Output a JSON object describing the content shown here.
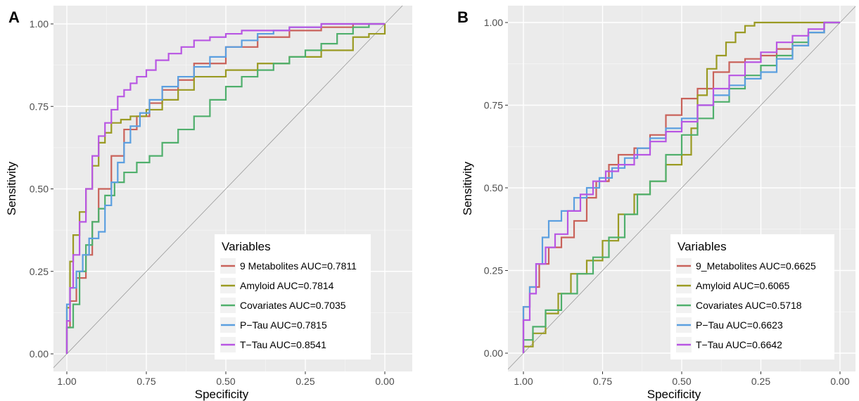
{
  "chart_data": [
    {
      "type": "line",
      "panel_label": "A",
      "xlabel": "Specificity",
      "ylabel": "Sensitivity",
      "xlim": [
        1.0,
        0.0
      ],
      "ylim": [
        0.0,
        1.0
      ],
      "x_reversed": true,
      "x_ticks": [
        "1.00",
        "0.75",
        "0.50",
        "0.25",
        "0.00"
      ],
      "x_tick_values": [
        1.0,
        0.75,
        0.5,
        0.25,
        0.0
      ],
      "y_ticks": [
        "0.00",
        "0.25",
        "0.50",
        "0.75",
        "1.00"
      ],
      "y_tick_values": [
        0.0,
        0.25,
        0.5,
        0.75,
        1.0
      ],
      "grid": true,
      "background": "#ebebeb",
      "diagonal_reference": true,
      "legend": {
        "title": "Variables",
        "position": "bottom-right"
      },
      "series": [
        {
          "name": "9 Metabolites AUC=0.7811",
          "color": "#c9625a",
          "x": [
            1.0,
            0.99,
            0.97,
            0.94,
            0.92,
            0.9,
            0.86,
            0.82,
            0.78,
            0.74,
            0.7,
            0.65,
            0.6,
            0.5,
            0.4,
            0.3,
            0.2,
            0.1,
            0.05,
            0.0
          ],
          "y": [
            0.0,
            0.08,
            0.16,
            0.23,
            0.3,
            0.4,
            0.5,
            0.6,
            0.68,
            0.72,
            0.76,
            0.8,
            0.83,
            0.88,
            0.93,
            0.96,
            0.98,
            0.99,
            1.0,
            1.0
          ]
        },
        {
          "name": "Amyloid AUC=0.7814",
          "color": "#9a9a22",
          "x": [
            1.0,
            0.99,
            0.98,
            0.96,
            0.94,
            0.92,
            0.9,
            0.88,
            0.86,
            0.83,
            0.8,
            0.75,
            0.7,
            0.65,
            0.6,
            0.5,
            0.4,
            0.3,
            0.2,
            0.1,
            0.05,
            0.0,
            0.0
          ],
          "y": [
            0.0,
            0.14,
            0.28,
            0.36,
            0.43,
            0.5,
            0.57,
            0.64,
            0.67,
            0.7,
            0.71,
            0.72,
            0.74,
            0.77,
            0.8,
            0.84,
            0.86,
            0.88,
            0.9,
            0.92,
            0.96,
            0.97,
            1.0
          ]
        },
        {
          "name": "Covariates AUC=0.7035",
          "color": "#4faf6c",
          "x": [
            1.0,
            0.98,
            0.96,
            0.94,
            0.92,
            0.9,
            0.88,
            0.85,
            0.82,
            0.78,
            0.74,
            0.7,
            0.65,
            0.6,
            0.55,
            0.5,
            0.45,
            0.4,
            0.35,
            0.3,
            0.25,
            0.2,
            0.15,
            0.1,
            0.05,
            0.0
          ],
          "y": [
            0.0,
            0.08,
            0.15,
            0.25,
            0.33,
            0.4,
            0.44,
            0.48,
            0.52,
            0.55,
            0.58,
            0.6,
            0.64,
            0.68,
            0.72,
            0.77,
            0.81,
            0.84,
            0.86,
            0.88,
            0.9,
            0.92,
            0.94,
            0.97,
            0.99,
            1.0
          ]
        },
        {
          "name": "P−Tau AUC=0.7815",
          "color": "#5b9fe0",
          "x": [
            1.0,
            0.99,
            0.97,
            0.95,
            0.93,
            0.9,
            0.88,
            0.86,
            0.84,
            0.82,
            0.8,
            0.77,
            0.74,
            0.7,
            0.65,
            0.6,
            0.55,
            0.5,
            0.45,
            0.4,
            0.35,
            0.3,
            0.2,
            0.1,
            0.0
          ],
          "y": [
            0.0,
            0.15,
            0.2,
            0.25,
            0.3,
            0.35,
            0.37,
            0.45,
            0.52,
            0.58,
            0.64,
            0.69,
            0.73,
            0.77,
            0.81,
            0.84,
            0.87,
            0.9,
            0.93,
            0.95,
            0.97,
            0.98,
            0.99,
            1.0,
            1.0
          ]
        },
        {
          "name": "T−Tau AUC=0.8541",
          "color": "#b856e3",
          "x": [
            1.0,
            0.99,
            0.98,
            0.96,
            0.94,
            0.92,
            0.9,
            0.88,
            0.86,
            0.84,
            0.82,
            0.8,
            0.78,
            0.75,
            0.72,
            0.68,
            0.64,
            0.6,
            0.55,
            0.5,
            0.45,
            0.4,
            0.3,
            0.2,
            0.1,
            0.0
          ],
          "y": [
            0.0,
            0.1,
            0.2,
            0.3,
            0.4,
            0.5,
            0.6,
            0.66,
            0.7,
            0.74,
            0.78,
            0.8,
            0.82,
            0.84,
            0.86,
            0.89,
            0.91,
            0.93,
            0.95,
            0.96,
            0.97,
            0.98,
            0.98,
            0.99,
            1.0,
            1.0
          ]
        }
      ]
    },
    {
      "type": "line",
      "panel_label": "B",
      "xlabel": "Specificity",
      "ylabel": "Sensitivity",
      "xlim": [
        1.0,
        0.0
      ],
      "ylim": [
        0.0,
        1.0
      ],
      "x_reversed": true,
      "x_ticks": [
        "1.00",
        "0.75",
        "0.50",
        "0.25",
        "0.00"
      ],
      "x_tick_values": [
        1.0,
        0.75,
        0.5,
        0.25,
        0.0
      ],
      "y_ticks": [
        "0.00",
        "0.25",
        "0.50",
        "0.75",
        "1.00"
      ],
      "y_tick_values": [
        0.0,
        0.25,
        0.5,
        0.75,
        1.0
      ],
      "grid": true,
      "background": "#ebebeb",
      "diagonal_reference": true,
      "legend": {
        "title": "Variables",
        "position": "bottom-right"
      },
      "series": [
        {
          "name": "9_Metabolites AUC=0.6625",
          "color": "#c9625a",
          "x": [
            1.0,
            0.98,
            0.95,
            0.92,
            0.88,
            0.84,
            0.8,
            0.77,
            0.73,
            0.7,
            0.65,
            0.6,
            0.55,
            0.5,
            0.45,
            0.4,
            0.35,
            0.3,
            0.25,
            0.2,
            0.15,
            0.1,
            0.05,
            0.0
          ],
          "y": [
            0.0,
            0.14,
            0.2,
            0.27,
            0.32,
            0.35,
            0.4,
            0.47,
            0.52,
            0.57,
            0.6,
            0.62,
            0.66,
            0.72,
            0.77,
            0.8,
            0.85,
            0.88,
            0.89,
            0.9,
            0.92,
            0.93,
            0.97,
            1.0
          ]
        },
        {
          "name": "Amyloid AUC=0.6065",
          "color": "#9a9a22",
          "x": [
            1.0,
            0.97,
            0.93,
            0.89,
            0.85,
            0.8,
            0.75,
            0.7,
            0.65,
            0.6,
            0.55,
            0.5,
            0.47,
            0.45,
            0.42,
            0.39,
            0.36,
            0.33,
            0.3,
            0.27,
            0.25,
            0.2,
            0.1,
            0.0
          ],
          "y": [
            0.0,
            0.02,
            0.06,
            0.12,
            0.18,
            0.24,
            0.28,
            0.34,
            0.42,
            0.48,
            0.52,
            0.57,
            0.6,
            0.68,
            0.78,
            0.86,
            0.9,
            0.94,
            0.97,
            0.99,
            1.0,
            1.0,
            1.0,
            1.0
          ]
        },
        {
          "name": "Covariates AUC=0.5718",
          "color": "#4faf6c",
          "x": [
            1.0,
            0.97,
            0.93,
            0.88,
            0.83,
            0.78,
            0.73,
            0.68,
            0.64,
            0.6,
            0.55,
            0.5,
            0.45,
            0.4,
            0.35,
            0.3,
            0.25,
            0.2,
            0.15,
            0.1,
            0.05,
            0.0
          ],
          "y": [
            0.0,
            0.04,
            0.08,
            0.13,
            0.18,
            0.24,
            0.29,
            0.35,
            0.42,
            0.48,
            0.52,
            0.6,
            0.66,
            0.71,
            0.76,
            0.8,
            0.84,
            0.87,
            0.9,
            0.94,
            0.97,
            1.0
          ]
        },
        {
          "name": "P−Tau AUC=0.6623",
          "color": "#5b9fe0",
          "x": [
            1.0,
            0.98,
            0.96,
            0.94,
            0.92,
            0.88,
            0.84,
            0.8,
            0.76,
            0.72,
            0.68,
            0.64,
            0.6,
            0.55,
            0.5,
            0.45,
            0.4,
            0.35,
            0.3,
            0.25,
            0.2,
            0.15,
            0.1,
            0.05,
            0.0
          ],
          "y": [
            0.0,
            0.14,
            0.2,
            0.27,
            0.35,
            0.4,
            0.43,
            0.47,
            0.5,
            0.53,
            0.56,
            0.59,
            0.62,
            0.65,
            0.68,
            0.71,
            0.75,
            0.78,
            0.81,
            0.83,
            0.85,
            0.89,
            0.93,
            0.97,
            1.0
          ]
        },
        {
          "name": "T−Tau AUC=0.6642",
          "color": "#b856e3",
          "x": [
            1.0,
            0.98,
            0.96,
            0.93,
            0.9,
            0.86,
            0.82,
            0.78,
            0.74,
            0.7,
            0.65,
            0.6,
            0.55,
            0.5,
            0.45,
            0.4,
            0.35,
            0.3,
            0.25,
            0.2,
            0.15,
            0.1,
            0.05,
            0.0
          ],
          "y": [
            0.0,
            0.1,
            0.18,
            0.27,
            0.32,
            0.36,
            0.43,
            0.48,
            0.52,
            0.55,
            0.57,
            0.6,
            0.64,
            0.67,
            0.7,
            0.75,
            0.8,
            0.84,
            0.88,
            0.91,
            0.94,
            0.96,
            0.98,
            1.0
          ]
        }
      ]
    }
  ]
}
